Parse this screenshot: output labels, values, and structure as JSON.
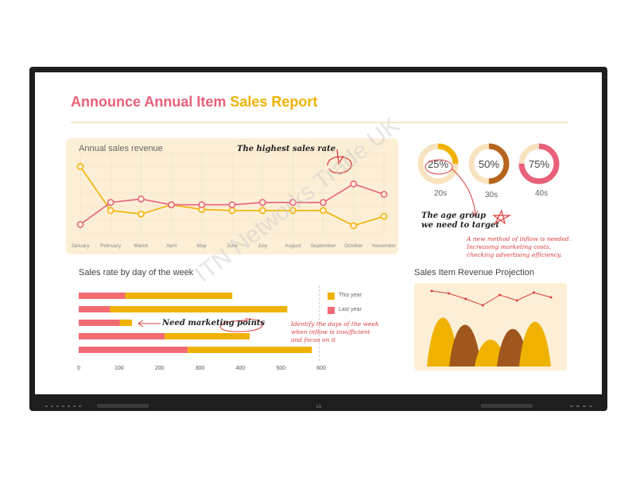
{
  "report": {
    "title_part1": "Announce Annual Item",
    "title_part2": "Sales Report"
  },
  "colors": {
    "accent_pink": "#e8607a",
    "accent_yellow": "#f0b200",
    "brown": "#b5651d",
    "card_bg": "#fcefd6",
    "annotation_red": "#d9403e"
  },
  "chart_data": [
    {
      "type": "line",
      "title": "Annual sales revenue",
      "categories": [
        "January",
        "February",
        "March",
        "April",
        "May",
        "June",
        "July",
        "August",
        "September",
        "October",
        "November"
      ],
      "series": [
        {
          "color": "#f0b200",
          "values": [
            88,
            50,
            47,
            55,
            51,
            50,
            50,
            50,
            50,
            37,
            45
          ]
        },
        {
          "color": "#e8607a",
          "values": [
            38,
            57,
            60,
            55,
            55,
            55,
            57,
            57,
            57,
            73,
            64
          ]
        }
      ],
      "ylim": [
        30,
        100
      ],
      "grid": true
    },
    {
      "type": "donut",
      "items": [
        {
          "percent": 25,
          "label": "25%",
          "caption": "20s",
          "color": "#f0b200"
        },
        {
          "percent": 50,
          "label": "50%",
          "caption": "30s",
          "color": "#b5651d"
        },
        {
          "percent": 75,
          "label": "75%",
          "caption": "40s",
          "color": "#e8607a"
        }
      ]
    },
    {
      "type": "bar",
      "orientation": "horizontal",
      "stacked": true,
      "title": "Sales rate by day of the week",
      "xticks": [
        "0",
        "100",
        "200",
        "300",
        "400",
        "500",
        "600"
      ],
      "xlim": [
        0,
        600
      ],
      "rows": [
        {
          "last_year": 115,
          "this_year": 265
        },
        {
          "last_year": 78,
          "this_year": 438
        },
        {
          "last_year": 102,
          "this_year": 30
        },
        {
          "last_year": 213,
          "this_year": 210
        },
        {
          "last_year": 270,
          "this_year": 307
        }
      ],
      "series": [
        {
          "name": "This year",
          "color": "#f0b200"
        },
        {
          "name": "Last year",
          "color": "#f26b72"
        }
      ]
    },
    {
      "type": "area",
      "title": "Sales Item Revenue Projection",
      "peaks": [
        {
          "height": 82,
          "color": "#f0b200"
        },
        {
          "height": 70,
          "color": "#a0571e"
        },
        {
          "height": 45,
          "color": "#f0b200"
        },
        {
          "height": 63,
          "color": "#a0571e"
        },
        {
          "height": 75,
          "color": "#f0b200"
        }
      ],
      "line_values": [
        90,
        87,
        80,
        72,
        85,
        78,
        88,
        82
      ]
    }
  ],
  "annotations": {
    "highest": "The highest sales rate",
    "age_group_line1": "The age group",
    "age_group_line2": "we need to target",
    "inflow_line1": "A new method of inflow is needed.",
    "inflow_line2": "Increasing marketing costs,",
    "inflow_line3": "checking advertising efficiency.",
    "need_marketing": "Need marketing points",
    "identify_line1": "Identify the days of the week",
    "identify_line2": "when inflow is insufficient",
    "identify_line3": "and focus on it"
  },
  "watermark": "ITN Networks Trade UK",
  "brand": "LG"
}
